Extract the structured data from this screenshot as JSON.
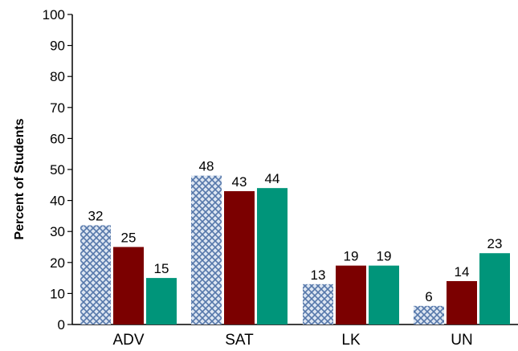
{
  "chart_data": {
    "type": "bar",
    "title": "",
    "xlabel": "",
    "ylabel": "Percent of Students",
    "ylim": [
      0,
      100
    ],
    "yticks": [
      0,
      10,
      20,
      30,
      40,
      50,
      60,
      70,
      80,
      90,
      100
    ],
    "categories": [
      "ADV",
      "SAT",
      "LK",
      "UN"
    ],
    "series": [
      {
        "values": [
          32,
          48,
          13,
          6
        ],
        "color": "#5577aa",
        "pattern": "crosshatch"
      },
      {
        "values": [
          25,
          43,
          19,
          14
        ],
        "color": "#7b0000"
      },
      {
        "values": [
          15,
          44,
          19,
          23
        ],
        "color": "#00957a"
      }
    ],
    "data_labels": true,
    "grid": false,
    "legend": "none"
  }
}
